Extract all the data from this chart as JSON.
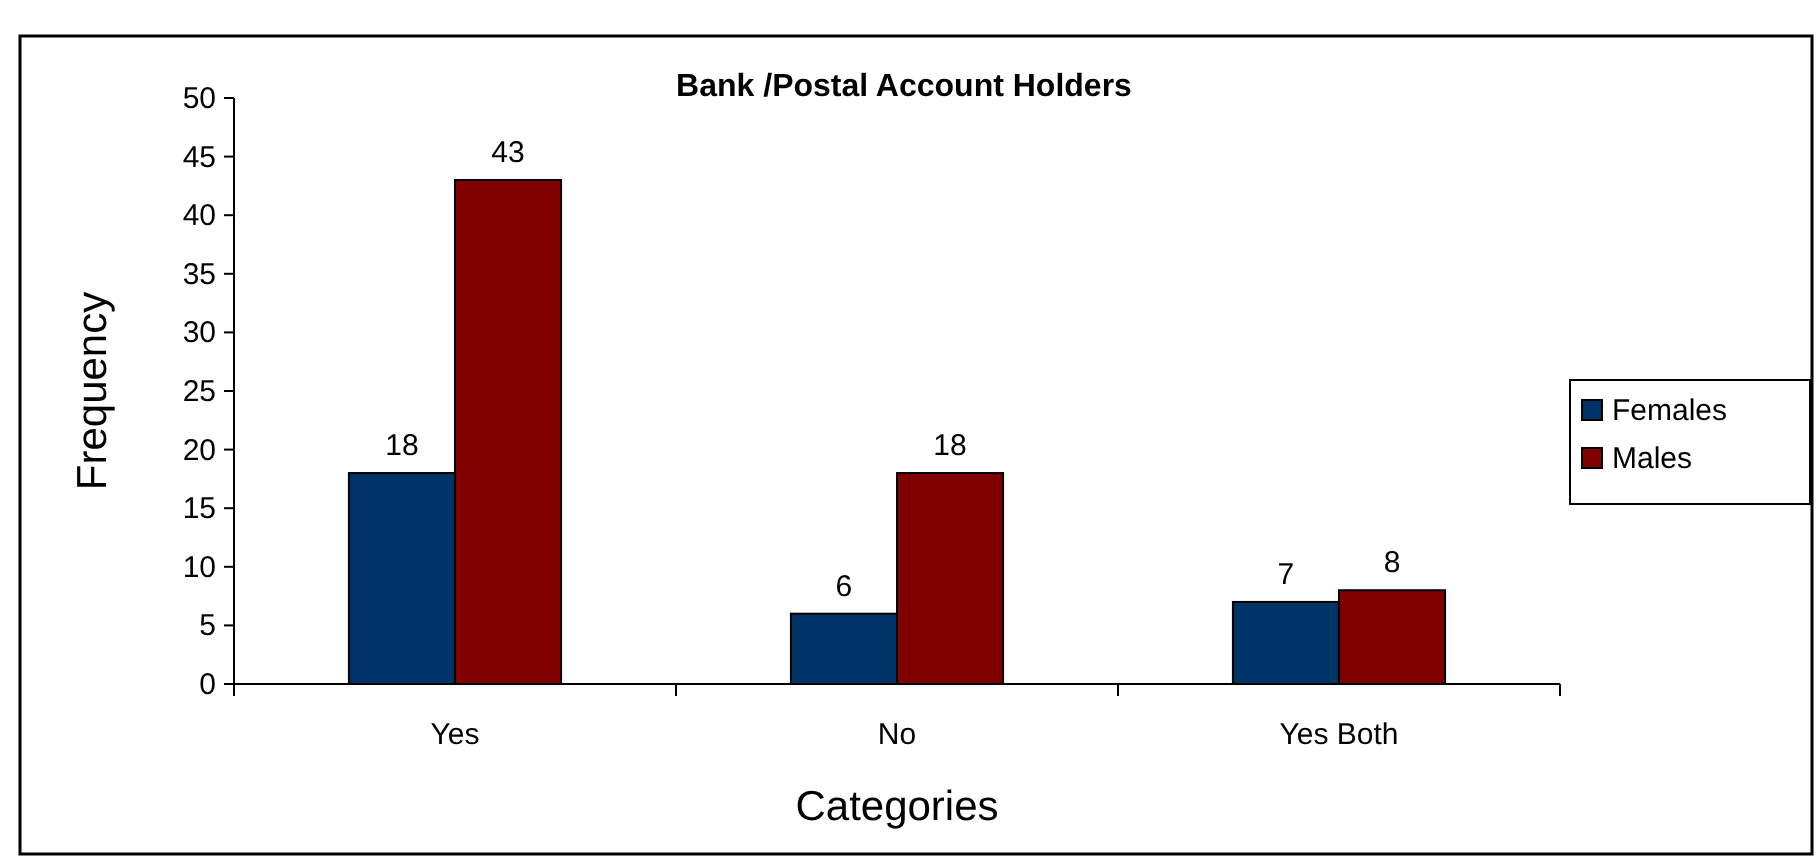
{
  "chart_data": {
    "type": "bar",
    "title": "Bank /Postal Account Holders",
    "xlabel": "Categories",
    "ylabel": "Frequency",
    "categories": [
      "Yes",
      "No",
      "Yes Both"
    ],
    "series": [
      {
        "name": "Females",
        "color": "#003366",
        "values": [
          18,
          6,
          7
        ]
      },
      {
        "name": "Males",
        "color": "#800000",
        "values": [
          43,
          18,
          8
        ]
      }
    ],
    "ylim": [
      0,
      50
    ],
    "yticks": [
      0,
      5,
      10,
      15,
      20,
      25,
      30,
      35,
      40,
      45,
      50
    ],
    "data_labels": true,
    "legend": "right",
    "grid": false
  }
}
